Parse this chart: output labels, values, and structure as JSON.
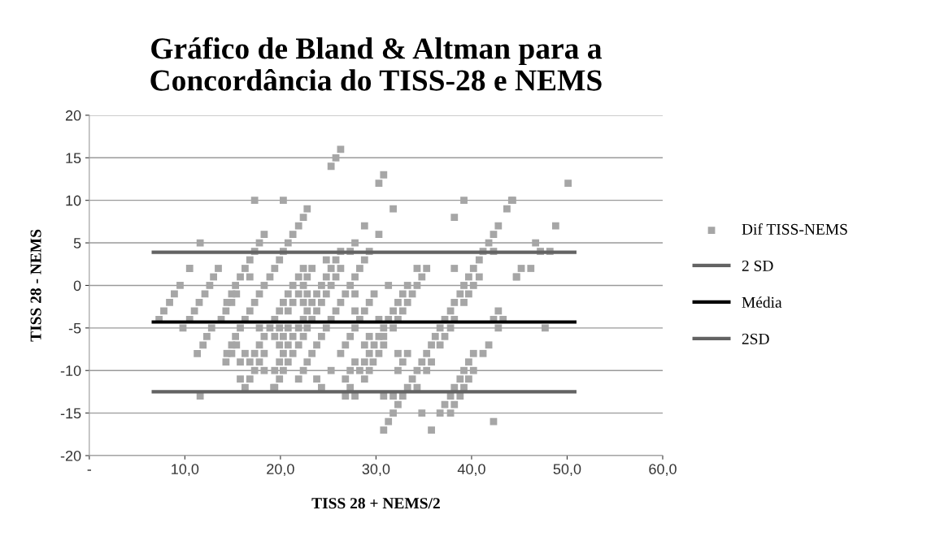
{
  "chart_data": {
    "type": "scatter",
    "title": "Gráfico de Bland & Altman para a\nConcordância do TISS-28 e NEMS",
    "xlabel": "TISS 28 + NEMS/2",
    "ylabel": "TISS 28 - NEMS",
    "xlim": [
      0,
      60
    ],
    "xticks": [
      {
        "value": 0,
        "label": "-"
      },
      {
        "value": 10,
        "label": "10,0"
      },
      {
        "value": 20,
        "label": "20,0"
      },
      {
        "value": 30,
        "label": "30,0"
      },
      {
        "value": 40,
        "label": "40,0"
      },
      {
        "value": 50,
        "label": "50,0"
      },
      {
        "value": 60,
        "label": "60,0"
      }
    ],
    "ylim": [
      -20,
      20
    ],
    "yticks": [
      -20,
      -15,
      -10,
      -5,
      0,
      5,
      10,
      15,
      20
    ],
    "grid": "y",
    "legend": "right",
    "marker": "square",
    "series": [
      {
        "name": "Dif TISS-NEMS",
        "color": "#a6a6a6",
        "x": [
          7.3,
          7.8,
          8.4,
          8.9,
          9.5,
          10.5,
          9.8,
          11.6,
          11.6,
          10.5,
          11.0,
          11.5,
          12.1,
          12.6,
          13.0,
          13.5,
          12.8,
          12.3,
          11.9,
          11.3,
          13.8,
          14.3,
          14.9,
          15.4,
          14.3,
          14.9,
          15.4,
          26.3,
          25.8,
          25.3,
          17.3,
          20.3,
          22.8,
          22.4,
          21.9,
          21.3,
          20.8,
          20.3,
          19.9,
          19.4,
          18.9,
          18.3,
          17.8,
          17.3,
          16.8,
          16.3,
          15.8,
          15.3,
          14.9,
          14.4,
          18.3,
          17.8,
          17.3,
          16.8,
          16.3,
          15.8,
          15.3,
          14.9,
          14.4,
          16.8,
          28.8,
          24.8,
          25.8,
          26.3,
          27.3,
          27.8,
          28.8,
          29.3,
          28.3,
          27.8,
          27.3,
          26.8,
          26.3,
          25.8,
          25.3,
          24.8,
          24.3,
          23.8,
          23.3,
          22.8,
          22.4,
          21.9,
          25.3,
          26.3,
          24.8,
          25.8,
          24.3,
          25.3,
          23.8,
          24.8,
          23.3,
          24.3,
          22.8,
          23.8,
          22.4,
          23.3,
          21.9,
          22.8,
          21.3,
          22.4,
          20.8,
          21.9,
          20.3,
          21.3,
          19.9,
          20.8,
          19.4,
          20.3,
          19.9,
          19.4,
          22.4,
          23.3,
          21.9,
          22.8,
          21.3,
          22.4,
          20.8,
          21.9,
          22.8,
          20.3,
          21.3,
          22.4,
          19.9,
          20.8,
          19.4,
          18.9,
          19.9,
          20.8,
          18.3,
          19.4,
          20.3,
          17.8,
          19.9,
          17.3,
          18.3,
          16.8,
          17.8,
          16.3,
          15.8,
          17.3,
          18.3,
          15.8,
          16.8,
          16.3,
          19.3,
          17.8,
          26.3,
          26.8,
          27.3,
          27.8,
          25.3,
          26.8,
          27.3,
          26.8,
          27.8,
          24.3,
          23.8,
          27.3,
          28.3,
          27.8,
          28.8,
          29.3,
          28.8,
          29.3,
          28.8,
          29.3,
          28.8,
          29.3,
          27.8,
          27.8,
          28.3,
          30.8,
          30.3,
          31.8,
          30.3,
          39.2,
          44.2,
          38.2,
          43.7,
          42.8,
          42.3,
          41.8,
          41.2,
          42.3,
          40.8,
          40.2,
          39.7,
          40.8,
          39.2,
          40.2,
          38.8,
          39.7,
          38.2,
          39.2,
          37.8,
          37.2,
          38.2,
          36.7,
          37.8,
          36.2,
          37.2,
          35.8,
          36.7,
          35.3,
          34.8,
          35.8,
          34.3,
          35.3,
          33.8,
          33.3,
          34.3,
          32.8,
          31.8,
          30.8,
          32.3,
          31.8,
          31.3,
          30.8,
          35.8,
          34.8,
          36.7,
          37.8,
          37.2,
          38.2,
          37.8,
          38.8,
          38.2,
          39.2,
          38.8,
          39.7,
          39.2,
          40.2,
          39.7,
          40.2,
          41.2,
          41.8,
          42.3,
          34.3,
          35.3,
          34.8,
          34.3,
          33.3,
          33.8,
          32.8,
          33.3,
          32.3,
          32.8,
          31.8,
          32.3,
          31.3,
          31.8,
          30.8,
          30.8,
          30.8,
          30.3,
          29.7,
          30.3,
          29.8,
          32.3,
          33.3,
          32.8,
          32.3,
          31.3,
          29.8,
          30.3,
          38.2,
          42.8,
          42.3,
          43.3,
          42.8,
          44.7,
          50.1,
          44.3,
          48.8,
          46.7,
          47.2,
          48.2,
          45.2,
          46.2,
          44.7,
          47.7
        ],
        "values": [
          -4,
          -3,
          -2,
          -1,
          0,
          2,
          -5,
          5,
          -13,
          -4,
          -3,
          -2,
          -1,
          0,
          1,
          2,
          -5,
          -6,
          -7,
          -8,
          -4,
          -3,
          -2,
          -1,
          -9,
          -8,
          -7,
          16,
          15,
          14,
          10,
          10,
          9,
          8,
          7,
          6,
          5,
          4,
          3,
          2,
          1,
          0,
          -1,
          -2,
          -3,
          -4,
          -5,
          -6,
          -7,
          -8,
          6,
          5,
          4,
          3,
          2,
          1,
          0,
          -1,
          -2,
          1,
          7,
          3,
          3,
          4,
          4,
          5,
          3,
          4,
          2,
          1,
          0,
          -1,
          -2,
          -3,
          -4,
          -5,
          -6,
          -7,
          -8,
          -9,
          -10,
          -11,
          2,
          2,
          1,
          1,
          0,
          0,
          -1,
          -1,
          -2,
          -2,
          -3,
          -3,
          -4,
          -4,
          -5,
          -5,
          -6,
          -6,
          -7,
          -7,
          -8,
          -8,
          -9,
          -9,
          -10,
          -10,
          -11,
          -12,
          2,
          2,
          1,
          1,
          0,
          0,
          -1,
          -1,
          -1,
          -2,
          -2,
          -2,
          -3,
          -3,
          -4,
          -5,
          -5,
          -5,
          -6,
          -6,
          -6,
          -7,
          -7,
          -8,
          -8,
          -9,
          -9,
          -8,
          -9,
          -10,
          -10,
          -11,
          -11,
          -12,
          -12,
          -5,
          -8,
          -7,
          -6,
          -5,
          -10,
          -11,
          -12,
          -13,
          -13,
          -12,
          -11,
          -10,
          -10,
          -9,
          -9,
          -10,
          -11,
          -8,
          -7,
          -6,
          -3,
          -2,
          -1,
          -3,
          -4,
          13,
          12,
          9,
          6,
          10,
          10,
          8,
          9,
          7,
          6,
          5,
          4,
          4,
          3,
          2,
          1,
          1,
          0,
          0,
          -1,
          -1,
          -2,
          -2,
          -3,
          -4,
          -4,
          -5,
          -5,
          -6,
          -6,
          -7,
          -7,
          -8,
          -9,
          -9,
          -10,
          -10,
          -11,
          -12,
          -12,
          -13,
          -13,
          -13,
          -14,
          -15,
          -16,
          -17,
          -17,
          -15,
          -15,
          -15,
          -14,
          -14,
          -13,
          -13,
          -12,
          -12,
          -11,
          -11,
          -10,
          -10,
          -9,
          -8,
          -8,
          -7,
          -16,
          2,
          2,
          1,
          0,
          0,
          -1,
          -1,
          -2,
          -2,
          -3,
          -3,
          -4,
          -4,
          -5,
          -5,
          -6,
          -7,
          -8,
          -9,
          -6,
          -7,
          -8,
          -8,
          -9,
          -10,
          0,
          -1,
          -4,
          2,
          -3,
          -4,
          -4,
          -5,
          1,
          12,
          10,
          7,
          5,
          4,
          4,
          2,
          2,
          1,
          -5
        ]
      },
      {
        "name": "2 SD",
        "type": "line",
        "color": "#636363",
        "marker": "none",
        "x": [
          6.7,
          50.8
        ],
        "values": [
          3.9,
          3.9
        ]
      },
      {
        "name": "Média",
        "type": "line",
        "color": "#000000",
        "marker": "none",
        "x": [
          6.7,
          50.8
        ],
        "values": [
          -4.3,
          -4.3
        ]
      },
      {
        "name": "2SD",
        "type": "line",
        "color": "#636363",
        "marker": "none",
        "x": [
          6.7,
          50.8
        ],
        "values": [
          -12.5,
          -12.5
        ]
      }
    ]
  }
}
